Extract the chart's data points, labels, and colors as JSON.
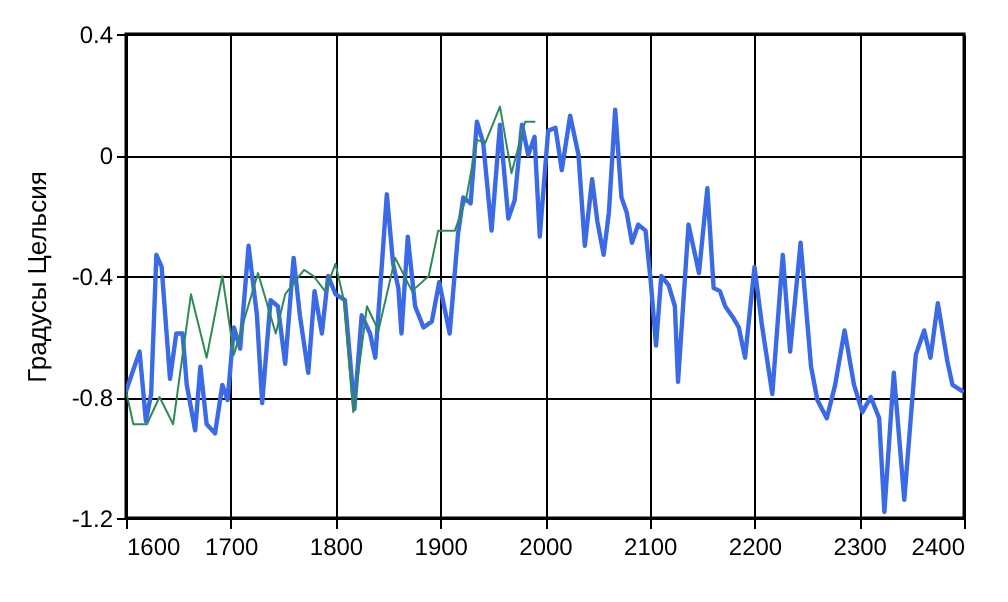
{
  "chart_data": {
    "type": "line",
    "ylabel": "Градусы Цельсия",
    "xlim": [
      1600,
      2400
    ],
    "xticks": [
      1600,
      1700,
      1800,
      1900,
      2000,
      2100,
      2200,
      2300,
      2400
    ],
    "ylim": [
      -1.2,
      0.4
    ],
    "yticks": [
      -1.2,
      -0.8,
      -0.4,
      0,
      0.4
    ],
    "grid": true,
    "series": [
      {
        "color": "#3a6ae6",
        "x": [
          1600,
          1613,
          1619,
          1624,
          1629,
          1634,
          1642,
          1648,
          1654,
          1658,
          1666,
          1671,
          1677,
          1685,
          1692,
          1697,
          1703,
          1709,
          1717,
          1725,
          1730,
          1738,
          1745,
          1752,
          1760,
          1766,
          1774,
          1780,
          1787,
          1793,
          1800,
          1809,
          1818,
          1825,
          1833,
          1838,
          1849,
          1855,
          1860,
          1863,
          1869,
          1876,
          1884,
          1892,
          1899,
          1909,
          1917,
          1922,
          1929,
          1935,
          1941,
          1949,
          1957,
          1965,
          1971,
          1978,
          1984,
          1990,
          1995,
          2003,
          2010,
          2016,
          2024,
          2032,
          2038,
          2045,
          2050,
          2056,
          2061,
          2067,
          2073,
          2078,
          2083,
          2089,
          2096,
          2101,
          2106,
          2111,
          2118,
          2124,
          2127,
          2137,
          2147,
          2155,
          2161,
          2167,
          2172,
          2180,
          2185,
          2191,
          2200,
          2207,
          2217,
          2227,
          2234,
          2244,
          2254,
          2260,
          2269,
          2277,
          2286,
          2295,
          2303,
          2311,
          2319,
          2324,
          2333,
          2343,
          2354,
          2362,
          2368,
          2375,
          2384,
          2389,
          2398
        ],
        "values": [
          -0.78,
          -0.65,
          -0.88,
          -0.79,
          -0.33,
          -0.37,
          -0.74,
          -0.59,
          -0.59,
          -0.76,
          -0.91,
          -0.7,
          -0.89,
          -0.92,
          -0.76,
          -0.81,
          -0.57,
          -0.64,
          -0.3,
          -0.53,
          -0.82,
          -0.48,
          -0.5,
          -0.69,
          -0.34,
          -0.53,
          -0.72,
          -0.45,
          -0.59,
          -0.4,
          -0.46,
          -0.48,
          -0.84,
          -0.53,
          -0.59,
          -0.67,
          -0.13,
          -0.36,
          -0.44,
          -0.59,
          -0.27,
          -0.5,
          -0.57,
          -0.55,
          -0.42,
          -0.59,
          -0.26,
          -0.14,
          -0.16,
          0.11,
          0.04,
          -0.25,
          0.1,
          -0.21,
          -0.15,
          0.1,
          0,
          0.06,
          -0.27,
          0.08,
          0.09,
          -0.05,
          0.13,
          0,
          -0.3,
          -0.08,
          -0.22,
          -0.33,
          -0.19,
          0.15,
          -0.14,
          -0.19,
          -0.29,
          -0.23,
          -0.25,
          -0.42,
          -0.63,
          -0.4,
          -0.43,
          -0.5,
          -0.75,
          -0.23,
          -0.39,
          -0.11,
          -0.44,
          -0.45,
          -0.5,
          -0.54,
          -0.57,
          -0.67,
          -0.37,
          -0.56,
          -0.79,
          -0.33,
          -0.65,
          -0.29,
          -0.7,
          -0.81,
          -0.87,
          -0.76,
          -0.58,
          -0.76,
          -0.85,
          -0.8,
          -0.87,
          -1.18,
          -0.72,
          -1.14,
          -0.66,
          -0.58,
          -0.67,
          -0.49,
          -0.68,
          -0.76,
          -0.78
        ]
      },
      {
        "color": "#2e8b57",
        "x": [
          1600,
          1607,
          1620,
          1632,
          1645,
          1662,
          1677,
          1692,
          1703,
          1726,
          1743,
          1752,
          1770,
          1779,
          1790,
          1800,
          1808,
          1817,
          1830,
          1841,
          1857,
          1873,
          1889,
          1898,
          1914,
          1925,
          1935,
          1943,
          1957,
          1968,
          1981,
          1990
        ],
        "values": [
          -0.78,
          -0.89,
          -0.89,
          -0.8,
          -0.89,
          -0.46,
          -0.67,
          -0.4,
          -0.66,
          -0.39,
          -0.59,
          -0.46,
          -0.38,
          -0.4,
          -0.45,
          -0.36,
          -0.48,
          -0.85,
          -0.5,
          -0.58,
          -0.34,
          -0.45,
          -0.4,
          -0.25,
          -0.25,
          -0.14,
          0.05,
          0.04,
          0.16,
          -0.06,
          0.11,
          0.11
        ]
      }
    ]
  }
}
